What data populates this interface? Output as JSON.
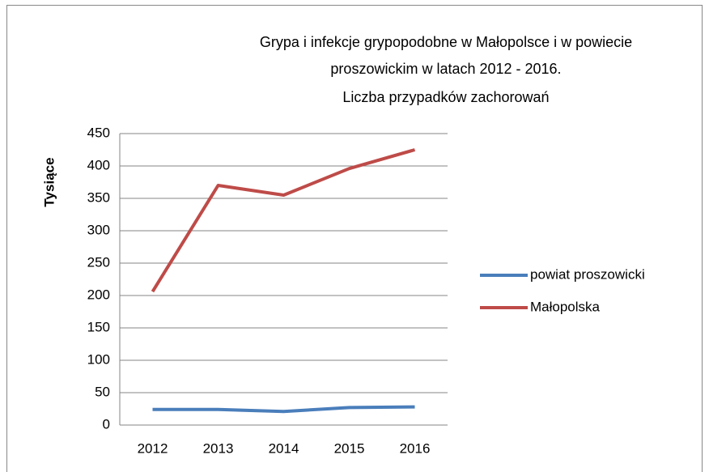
{
  "chart_data": {
    "type": "line",
    "title": "Grypa i infekcje grypopodobne w Małopolsce i w powiecie proszowickim w latach 2012 - 2016.",
    "subtitle": "Liczba przypadków zachorowań",
    "ylabel": "Tysiące",
    "categories": [
      "2012",
      "2013",
      "2014",
      "2015",
      "2016"
    ],
    "series": [
      {
        "name": "powiat proszowicki",
        "color": "#4a7ebb",
        "values": [
          24,
          24,
          21,
          27,
          28
        ]
      },
      {
        "name": "Małopolska",
        "color": "#be4b48",
        "values": [
          206,
          370,
          355,
          396,
          425
        ]
      }
    ],
    "ylim": [
      0,
      450
    ],
    "yticks": [
      0,
      50,
      100,
      150,
      200,
      250,
      300,
      350,
      400,
      450
    ],
    "grid": true,
    "legend": "right"
  }
}
